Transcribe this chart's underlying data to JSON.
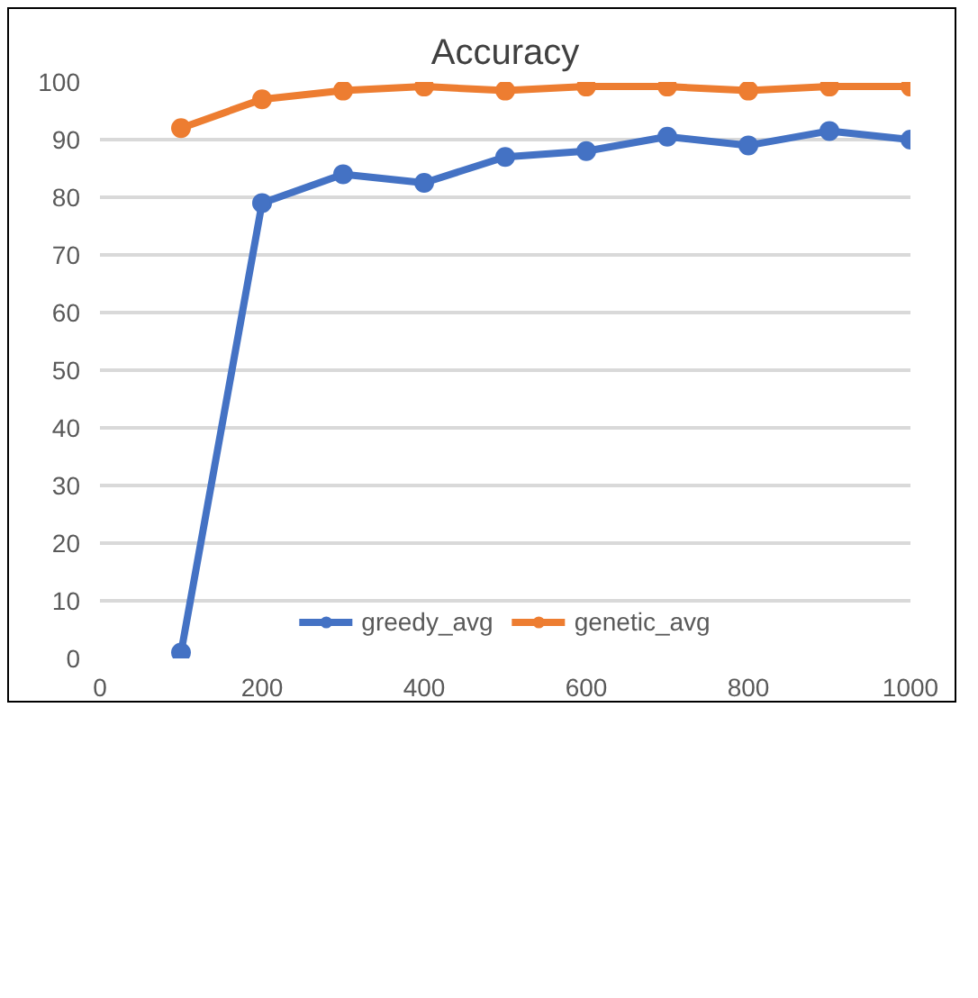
{
  "chart_data": {
    "type": "line",
    "title": "Accuracy",
    "x": [
      100,
      200,
      300,
      400,
      500,
      600,
      700,
      800,
      900,
      1000
    ],
    "series": [
      {
        "name": "greedy_avg",
        "color": "#4472c4",
        "values": [
          1,
          79,
          84,
          82.5,
          87,
          88,
          90.5,
          89,
          91.5,
          90
        ]
      },
      {
        "name": "genetic_avg",
        "color": "#ed7d31",
        "values": [
          92,
          97,
          98.5,
          99.2,
          98.5,
          99.2,
          99.2,
          98.5,
          99.2,
          99.2
        ]
      }
    ],
    "xlim": [
      0,
      1000
    ],
    "xticks": [
      0,
      200,
      400,
      600,
      800,
      1000
    ],
    "ylim": [
      0,
      100
    ],
    "yticks": [
      0,
      10,
      20,
      30,
      40,
      50,
      60,
      70,
      80,
      90,
      100
    ],
    "grid": "y",
    "legend": "bottom",
    "marker": "circle",
    "line_style": "solid"
  }
}
